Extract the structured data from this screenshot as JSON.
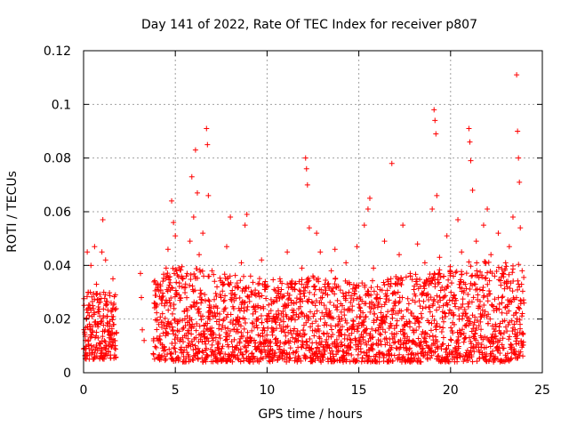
{
  "chart_data": {
    "type": "scatter",
    "title": "Day 141 of 2022, Rate Of TEC Index for receiver p807",
    "xlabel": "GPS time / hours",
    "ylabel": "ROTI / TECUs",
    "xlim": [
      0,
      25
    ],
    "ylim": [
      0,
      0.12
    ],
    "xticks": [
      0,
      5,
      10,
      15,
      20,
      25
    ],
    "xtick_labels": [
      "0",
      "5",
      "10",
      "15",
      "20",
      "25"
    ],
    "yticks": [
      0,
      0.02,
      0.04,
      0.06,
      0.08,
      0.1,
      0.12
    ],
    "ytick_labels": [
      "0",
      "0.02",
      "0.04",
      "0.06",
      "0.08",
      "0.1",
      "0.12"
    ],
    "grid": true,
    "marker": "+",
    "color": "#ff0000",
    "series": [
      {
        "name": "ROTI",
        "points": [
          [
            0.1,
            0.012
          ],
          [
            0.15,
            0.02
          ],
          [
            0.2,
            0.045
          ],
          [
            0.25,
            0.03
          ],
          [
            0.3,
            0.009
          ],
          [
            0.35,
            0.016
          ],
          [
            0.4,
            0.04
          ],
          [
            0.5,
            0.025
          ],
          [
            0.6,
            0.047
          ],
          [
            0.7,
            0.033
          ],
          [
            0.8,
            0.018
          ],
          [
            0.9,
            0.011
          ],
          [
            1.0,
            0.045
          ],
          [
            1.05,
            0.057
          ],
          [
            1.1,
            0.03
          ],
          [
            1.2,
            0.042
          ],
          [
            1.3,
            0.021
          ],
          [
            1.4,
            0.013
          ],
          [
            1.5,
            0.026
          ],
          [
            1.6,
            0.035
          ],
          [
            1.7,
            0.009
          ],
          [
            3.1,
            0.037
          ],
          [
            3.15,
            0.028
          ],
          [
            3.2,
            0.016
          ],
          [
            3.3,
            0.012
          ],
          [
            4.0,
            0.031
          ],
          [
            4.1,
            0.018
          ],
          [
            4.2,
            0.011
          ],
          [
            4.3,
            0.022
          ],
          [
            4.5,
            0.039
          ],
          [
            4.6,
            0.046
          ],
          [
            4.7,
            0.017
          ],
          [
            4.8,
            0.064
          ],
          [
            4.9,
            0.056
          ],
          [
            5.0,
            0.051
          ],
          [
            5.2,
            0.029
          ],
          [
            5.4,
            0.013
          ],
          [
            5.6,
            0.036
          ],
          [
            5.8,
            0.049
          ],
          [
            5.9,
            0.073
          ],
          [
            6.0,
            0.058
          ],
          [
            6.1,
            0.083
          ],
          [
            6.2,
            0.067
          ],
          [
            6.3,
            0.044
          ],
          [
            6.4,
            0.026
          ],
          [
            6.5,
            0.052
          ],
          [
            6.7,
            0.091
          ],
          [
            6.75,
            0.085
          ],
          [
            6.8,
            0.066
          ],
          [
            7.0,
            0.038
          ],
          [
            7.2,
            0.021
          ],
          [
            7.4,
            0.014
          ],
          [
            7.6,
            0.033
          ],
          [
            7.8,
            0.047
          ],
          [
            8.0,
            0.058
          ],
          [
            8.2,
            0.029
          ],
          [
            8.4,
            0.019
          ],
          [
            8.6,
            0.041
          ],
          [
            8.8,
            0.055
          ],
          [
            8.9,
            0.059
          ],
          [
            9.1,
            0.036
          ],
          [
            9.3,
            0.017
          ],
          [
            9.5,
            0.025
          ],
          [
            9.7,
            0.042
          ],
          [
            9.9,
            0.031
          ],
          [
            10.1,
            0.022
          ],
          [
            10.3,
            0.014
          ],
          [
            10.5,
            0.028
          ],
          [
            10.7,
            0.035
          ],
          [
            10.9,
            0.019
          ],
          [
            11.1,
            0.045
          ],
          [
            11.3,
            0.027
          ],
          [
            11.5,
            0.033
          ],
          [
            11.7,
            0.012
          ],
          [
            11.9,
            0.039
          ],
          [
            12.1,
            0.08
          ],
          [
            12.15,
            0.076
          ],
          [
            12.2,
            0.07
          ],
          [
            12.3,
            0.054
          ],
          [
            12.5,
            0.036
          ],
          [
            12.7,
            0.052
          ],
          [
            12.9,
            0.045
          ],
          [
            13.1,
            0.021
          ],
          [
            13.3,
            0.029
          ],
          [
            13.5,
            0.038
          ],
          [
            13.7,
            0.046
          ],
          [
            13.9,
            0.015
          ],
          [
            14.1,
            0.025
          ],
          [
            14.3,
            0.041
          ],
          [
            14.5,
            0.033
          ],
          [
            14.7,
            0.018
          ],
          [
            14.9,
            0.047
          ],
          [
            15.1,
            0.023
          ],
          [
            15.3,
            0.055
          ],
          [
            15.5,
            0.061
          ],
          [
            15.6,
            0.065
          ],
          [
            15.8,
            0.039
          ],
          [
            16.0,
            0.028
          ],
          [
            16.2,
            0.017
          ],
          [
            16.4,
            0.049
          ],
          [
            16.6,
            0.034
          ],
          [
            16.8,
            0.078
          ],
          [
            17.0,
            0.026
          ],
          [
            17.2,
            0.044
          ],
          [
            17.4,
            0.055
          ],
          [
            17.6,
            0.019
          ],
          [
            17.8,
            0.037
          ],
          [
            18.0,
            0.031
          ],
          [
            18.2,
            0.048
          ],
          [
            18.4,
            0.022
          ],
          [
            18.6,
            0.041
          ],
          [
            18.8,
            0.035
          ],
          [
            19.0,
            0.061
          ],
          [
            19.1,
            0.098
          ],
          [
            19.15,
            0.094
          ],
          [
            19.2,
            0.089
          ],
          [
            19.25,
            0.066
          ],
          [
            19.4,
            0.043
          ],
          [
            19.6,
            0.025
          ],
          [
            19.8,
            0.051
          ],
          [
            20.0,
            0.037
          ],
          [
            20.2,
            0.029
          ],
          [
            20.4,
            0.057
          ],
          [
            20.6,
            0.045
          ],
          [
            20.8,
            0.033
          ],
          [
            21.0,
            0.091
          ],
          [
            21.05,
            0.086
          ],
          [
            21.1,
            0.079
          ],
          [
            21.2,
            0.068
          ],
          [
            21.4,
            0.049
          ],
          [
            21.6,
            0.031
          ],
          [
            21.8,
            0.055
          ],
          [
            22.0,
            0.061
          ],
          [
            22.2,
            0.044
          ],
          [
            22.4,
            0.036
          ],
          [
            22.6,
            0.052
          ],
          [
            22.8,
            0.028
          ],
          [
            23.0,
            0.041
          ],
          [
            23.2,
            0.047
          ],
          [
            23.4,
            0.058
          ],
          [
            23.6,
            0.111
          ],
          [
            23.65,
            0.09
          ],
          [
            23.7,
            0.08
          ],
          [
            23.75,
            0.071
          ],
          [
            23.8,
            0.054
          ],
          [
            23.9,
            0.038
          ],
          [
            24.0,
            0.026
          ]
        ],
        "band_profile": [
          [
            0.0,
            0.005,
            0.03
          ],
          [
            1.8,
            0.005,
            0.03
          ],
          [
            3.8,
            0.005,
            0.034
          ],
          [
            5.0,
            0.004,
            0.04
          ],
          [
            7.0,
            0.004,
            0.038
          ],
          [
            9.0,
            0.004,
            0.036
          ],
          [
            11.0,
            0.004,
            0.034
          ],
          [
            13.0,
            0.004,
            0.036
          ],
          [
            15.0,
            0.004,
            0.034
          ],
          [
            17.0,
            0.004,
            0.036
          ],
          [
            19.0,
            0.004,
            0.038
          ],
          [
            21.0,
            0.004,
            0.042
          ],
          [
            23.0,
            0.004,
            0.042
          ],
          [
            24.0,
            0.006,
            0.04
          ]
        ]
      }
    ]
  }
}
